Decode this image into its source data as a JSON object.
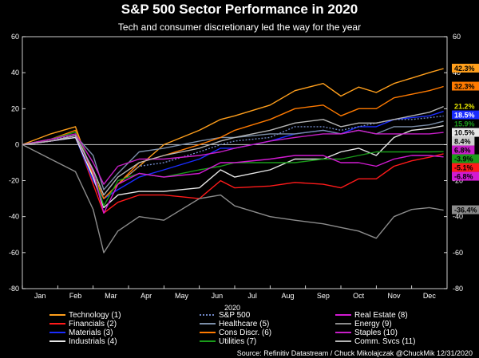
{
  "chart_data": {
    "type": "line",
    "title": "S&P 500 Sector Performance in 2020",
    "subtitle": "Tech and consumer discretionary led the way for the year",
    "xlabel": "2020",
    "ylabel": "",
    "ylim": [
      -80,
      60
    ],
    "yticks": [
      -80,
      -60,
      -40,
      -20,
      0,
      20,
      40,
      60
    ],
    "xlim": [
      0,
      12
    ],
    "months": [
      "Jan",
      "Feb",
      "Mar",
      "Apr",
      "May",
      "Jun",
      "Jul",
      "Aug",
      "Sep",
      "Oct",
      "Nov",
      "Dec"
    ],
    "grid": false,
    "legend_position": "bottom",
    "source": "Source: Refinitiv Datastream / Chuck Mikolajczak @ChuckMik 12/31/2020",
    "x": [
      0,
      0.8,
      1.5,
      2.0,
      2.3,
      2.7,
      3.3,
      4.0,
      5.0,
      5.6,
      6.0,
      7.0,
      7.7,
      8.5,
      9.0,
      9.5,
      10.0,
      10.5,
      11.0,
      11.5,
      11.9
    ],
    "series": [
      {
        "name": "Technology (1)",
        "color": "#ff9f1c",
        "end_label": "42.3%",
        "label_bg": "#ff9f1c",
        "label_fg": "#000000",
        "values": [
          0,
          6,
          10,
          -18,
          -30,
          -22,
          -12,
          0,
          8,
          14,
          16,
          22,
          30,
          34,
          27,
          32,
          29,
          34,
          37,
          40,
          42.3
        ]
      },
      {
        "name": "Financials (2)",
        "color": "#ff1a1a",
        "end_label": "-5.1%",
        "label_bg": "#ff1a1a",
        "label_fg": "#000000",
        "values": [
          0,
          2,
          5,
          -22,
          -38,
          -32,
          -28,
          -28,
          -30,
          -20,
          -24,
          -23,
          -21,
          -22,
          -24,
          -19,
          -19,
          -12,
          -9,
          -7,
          -5.1
        ]
      },
      {
        "name": "Materials (3)",
        "color": "#1a2cff",
        "end_label": "18.5%",
        "label_bg": "#1a2cff",
        "label_fg": "#ffffff",
        "values": [
          0,
          2,
          4,
          -20,
          -30,
          -25,
          -18,
          -14,
          -8,
          -2,
          -2,
          2,
          6,
          8,
          6,
          10,
          10,
          14,
          15,
          16,
          18.5
        ]
      },
      {
        "name": "Industrials (4)",
        "color": "#e8e8e8",
        "end_label": "10.5%",
        "label_bg": "#e8e8e8",
        "label_fg": "#000000",
        "values": [
          0,
          2,
          4,
          -18,
          -35,
          -28,
          -26,
          -26,
          -24,
          -14,
          -18,
          -14,
          -8,
          -8,
          -4,
          -2,
          -6,
          4,
          8,
          9,
          10.5
        ]
      },
      {
        "name": "S&P 500",
        "color": "#6f86c4",
        "dashed": true,
        "end_label": "15.9%",
        "label_bg": "#000000",
        "label_fg": "#1a9c1a",
        "values": [
          0,
          3,
          5,
          -15,
          -30,
          -22,
          -12,
          -10,
          -4,
          0,
          2,
          4,
          10,
          10,
          8,
          10,
          12,
          14,
          14,
          15,
          15.9
        ]
      },
      {
        "name": "Healthcare (5)",
        "color": "#7b8ea8",
        "end_label": "",
        "values": [
          0,
          2,
          5,
          -6,
          -25,
          -16,
          -4,
          -2,
          2,
          4,
          4,
          6,
          6,
          8,
          6,
          8,
          6,
          10,
          10,
          11,
          13
        ]
      },
      {
        "name": "Cons Discr. (6)",
        "color": "#ff7a00",
        "end_label": "32.3%",
        "label_bg": "#ff7a00",
        "label_fg": "#000000",
        "values": [
          0,
          3,
          8,
          -16,
          -30,
          -22,
          -10,
          -6,
          0,
          4,
          8,
          14,
          20,
          22,
          16,
          20,
          20,
          26,
          28,
          30,
          32.3
        ]
      },
      {
        "name": "Utilities (7)",
        "color": "#1a9c1a",
        "end_label": "-3.9%",
        "label_bg": "#1a9c1a",
        "label_fg": "#000000",
        "values": [
          0,
          3,
          7,
          -15,
          -34,
          -20,
          -16,
          -18,
          -14,
          -12,
          -10,
          -10,
          -10,
          -8,
          -8,
          -6,
          -4,
          -4,
          -4,
          -4,
          -3.9
        ]
      },
      {
        "name": "Real Estate (8)",
        "color": "#d21ad2",
        "end_label": "-6.8%",
        "label_bg": "#d21ad2",
        "label_fg": "#000000",
        "values": [
          0,
          2,
          5,
          -15,
          -38,
          -22,
          -16,
          -18,
          -16,
          -10,
          -10,
          -8,
          -6,
          -6,
          -10,
          -10,
          -12,
          -8,
          -6,
          -6,
          -6.8
        ]
      },
      {
        "name": "Energy (9)",
        "color": "#8c8c8c",
        "end_label": "-36.4%",
        "label_bg": "#8c8c8c",
        "label_fg": "#000000",
        "values": [
          0,
          -8,
          -15,
          -36,
          -60,
          -48,
          -40,
          -42,
          -30,
          -28,
          -34,
          -40,
          -42,
          -44,
          -46,
          -48,
          -52,
          -40,
          -36,
          -35,
          -36.4
        ]
      },
      {
        "name": "Staples (10)",
        "color": "#c81ec8",
        "end_label": "6.8%",
        "label_bg": "#c81ec8",
        "label_fg": "#000000",
        "values": [
          0,
          3,
          6,
          -10,
          -22,
          -12,
          -8,
          -8,
          -6,
          -4,
          -2,
          2,
          4,
          6,
          6,
          8,
          6,
          6,
          6,
          6,
          6.8
        ]
      },
      {
        "name": "Comm. Svcs (11)",
        "color": "#b5b5b5",
        "end_label": "21.2%",
        "label_bg": "#000000",
        "label_fg": "#e6e600",
        "values": [
          0,
          2,
          5,
          -14,
          -28,
          -18,
          -10,
          -6,
          -2,
          2,
          4,
          8,
          12,
          14,
          10,
          12,
          12,
          14,
          16,
          18,
          21.2
        ]
      }
    ],
    "end_labels_extra": [
      "8.4%"
    ],
    "legend": [
      [
        "Technology (1)",
        "S&P 500",
        "Real Estate (8)"
      ],
      [
        "Financials (2)",
        "Healthcare (5)",
        "Energy (9)"
      ],
      [
        "Materials (3)",
        "Cons Discr. (6)",
        "Staples (10)"
      ],
      [
        "Industrials (4)",
        "Utilities (7)",
        "Comm. Svcs (11)"
      ]
    ]
  }
}
